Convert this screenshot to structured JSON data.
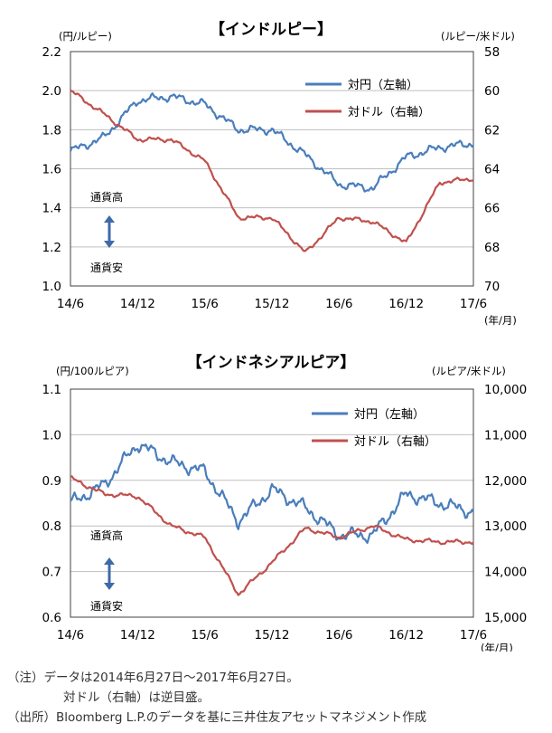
{
  "charts": [
    {
      "title": "【インドルピー】",
      "left_unit": "(円/ルピー)",
      "right_unit": "(ルピー/米ドル)",
      "x_unit": "(年/月)",
      "left_ticks": [
        "2.2",
        "2.0",
        "1.8",
        "1.6",
        "1.4",
        "1.2",
        "1.0"
      ],
      "right_ticks": [
        "58",
        "60",
        "62",
        "64",
        "66",
        "68",
        "70"
      ],
      "x_ticks": [
        "14/6",
        "14/12",
        "15/6",
        "15/12",
        "16/6",
        "16/12",
        "17/6"
      ],
      "legend": [
        "対円（左軸）",
        "対ドル（右軸）"
      ],
      "strong_label": "通貨高",
      "weak_label": "通貨安"
    },
    {
      "title": "【インドネシアルピア】",
      "left_unit": "(円/100ルピア)",
      "right_unit": "(ルピア/米ドル)",
      "x_unit": "(年/月)",
      "left_ticks": [
        "1.1",
        "1.0",
        "0.9",
        "0.8",
        "0.7",
        "0.6"
      ],
      "right_ticks": [
        "10,000",
        "11,000",
        "12,000",
        "13,000",
        "14,000",
        "15,000"
      ],
      "x_ticks": [
        "14/6",
        "14/12",
        "15/6",
        "15/12",
        "16/6",
        "16/12",
        "17/6"
      ],
      "legend": [
        "対円（左軸）",
        "対ドル（右軸）"
      ],
      "strong_label": "通貨高",
      "weak_label": "通貨安"
    }
  ],
  "notes": {
    "line1": "（注）データは2014年6月27日～2017年6月27日。",
    "line2": "対ドル（右軸）は逆目盛。",
    "line3": "（出所）Bloomberg L.P.のデータを基に三井住友アセットマネジメント作成"
  },
  "colors": {
    "yen": "#4a7ebb",
    "usd": "#c0504d",
    "arrow": "#3e6aa8",
    "grid": "#bfbfbf"
  },
  "chart_data": [
    {
      "type": "line",
      "title": "【インドルピー】",
      "x": [
        "2014-06",
        "2014-09",
        "2014-12",
        "2015-03",
        "2015-06",
        "2015-09",
        "2015-12",
        "2016-03",
        "2016-06",
        "2016-09",
        "2016-12",
        "2017-03",
        "2017-06"
      ],
      "series": [
        {
          "name": "対円（左軸）",
          "axis": "left",
          "values": [
            1.69,
            1.76,
            1.95,
            1.97,
            1.93,
            1.8,
            1.8,
            1.67,
            1.52,
            1.5,
            1.66,
            1.71,
            1.73
          ]
        },
        {
          "name": "対ドル（右軸）",
          "axis": "right",
          "values": [
            60.0,
            61.2,
            62.5,
            62.5,
            63.6,
            66.5,
            66.5,
            68.3,
            66.5,
            66.7,
            67.8,
            64.7,
            64.5
          ],
          "inverted": true
        }
      ],
      "ylim_left": [
        1.0,
        2.2
      ],
      "ylim_right": [
        58,
        70
      ],
      "xlabel": "(年/月)"
    },
    {
      "type": "line",
      "title": "【インドネシアルピア】",
      "x": [
        "2014-06",
        "2014-09",
        "2014-12",
        "2015-03",
        "2015-06",
        "2015-09",
        "2015-12",
        "2016-03",
        "2016-06",
        "2016-09",
        "2016-12",
        "2017-03",
        "2017-06"
      ],
      "series": [
        {
          "name": "対円（左軸）",
          "axis": "left",
          "values": [
            0.85,
            0.89,
            0.98,
            0.94,
            0.92,
            0.81,
            0.88,
            0.84,
            0.78,
            0.78,
            0.87,
            0.85,
            0.83
          ]
        },
        {
          "name": "対ドル（右軸）",
          "axis": "right",
          "values": [
            11950,
            12300,
            12350,
            13000,
            13250,
            14500,
            13800,
            13050,
            13250,
            13000,
            13300,
            13350,
            13350
          ],
          "inverted": true
        }
      ],
      "ylim_left": [
        0.6,
        1.1
      ],
      "ylim_right": [
        10000,
        15000
      ],
      "xlabel": "(年/月)"
    }
  ]
}
